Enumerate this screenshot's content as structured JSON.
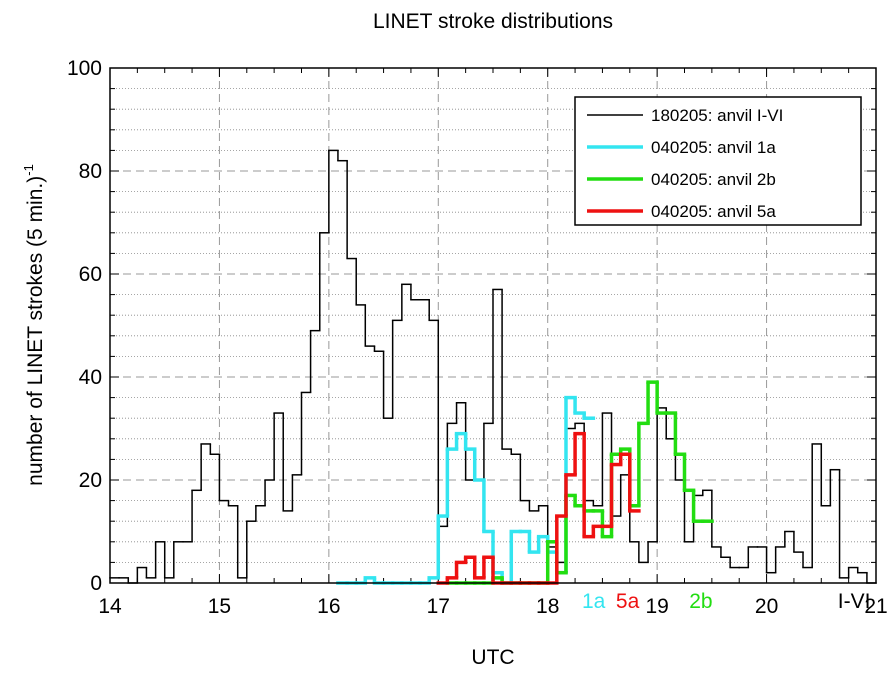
{
  "chart_data": {
    "type": "step",
    "title": "LINET stroke distributions",
    "xlabel": "UTC",
    "ylabel": "number of LINET strokes (5 min.)",
    "ylabel_superscript": "-1",
    "xlim": [
      14,
      21
    ],
    "xticks": [
      14,
      15,
      16,
      17,
      18,
      19,
      20,
      21
    ],
    "ylim": [
      0,
      100
    ],
    "yticks": [
      0,
      20,
      40,
      60,
      80,
      100
    ],
    "grid": true,
    "minor_per_major": 5,
    "legend": "upper right",
    "series": [
      {
        "name": "180205: anvil I-VI",
        "color": "#000000",
        "x": [
          14.0,
          14.083,
          14.167,
          14.25,
          14.333,
          14.417,
          14.5,
          14.583,
          14.667,
          14.75,
          14.833,
          14.917,
          15.0,
          15.083,
          15.167,
          15.25,
          15.333,
          15.417,
          15.5,
          15.583,
          15.667,
          15.75,
          15.833,
          15.917,
          16.0,
          16.083,
          16.167,
          16.25,
          16.333,
          16.417,
          16.5,
          16.583,
          16.667,
          16.75,
          16.833,
          16.917,
          17.0,
          17.083,
          17.167,
          17.25,
          17.333,
          17.417,
          17.5,
          17.583,
          17.667,
          17.75,
          17.833,
          17.917,
          18.0,
          18.083,
          18.167,
          18.25,
          18.333,
          18.417,
          18.5,
          18.583,
          18.667,
          18.75,
          18.833,
          18.917,
          19.0,
          19.083,
          19.167,
          19.25,
          19.333,
          19.417,
          19.5,
          19.583,
          19.667,
          19.75,
          19.833,
          19.917,
          20.0,
          20.083,
          20.167,
          20.25,
          20.333,
          20.417,
          20.5,
          20.583,
          20.667,
          20.75,
          20.833,
          20.917
        ],
        "values": [
          1,
          1,
          0,
          3,
          1,
          8,
          1,
          8,
          8,
          18,
          27,
          25,
          16,
          15,
          1,
          12,
          15,
          20,
          33,
          14,
          21,
          37,
          49,
          68,
          84,
          82,
          63,
          54,
          46,
          45,
          32,
          51,
          58,
          55,
          55,
          51,
          11,
          31,
          35,
          20,
          20,
          31,
          57,
          26,
          25,
          16,
          14,
          15,
          7,
          4,
          30,
          31,
          16,
          15,
          33,
          13,
          21,
          8,
          4,
          8,
          34,
          28,
          20,
          8,
          17,
          18,
          7,
          5,
          3,
          3,
          7,
          7,
          2,
          7,
          10,
          6,
          3,
          27,
          15,
          22,
          1,
          3,
          2,
          0
        ]
      },
      {
        "name": "040205: anvil 1a",
        "color": "#33e5f0",
        "x": [
          16.083,
          16.167,
          16.25,
          16.333,
          16.417,
          16.5,
          16.583,
          16.667,
          16.75,
          16.833,
          16.917,
          17.0,
          17.083,
          17.167,
          17.25,
          17.333,
          17.417,
          17.5,
          17.583,
          17.667,
          17.75,
          17.833,
          17.917,
          18.0,
          18.083,
          18.167,
          18.25,
          18.333
        ],
        "values": [
          0,
          0,
          0,
          1,
          0,
          0,
          0,
          0,
          0,
          0,
          1,
          13,
          26,
          29,
          26,
          20,
          10,
          2,
          0,
          10,
          10,
          6,
          9,
          6,
          2,
          36,
          33,
          32
        ]
      },
      {
        "name": "040205: anvil 2b",
        "color": "#22dd11",
        "x": [
          17.083,
          17.167,
          17.25,
          17.333,
          17.417,
          17.5,
          17.583,
          17.667,
          17.75,
          17.833,
          17.917,
          18.0,
          18.083,
          18.167,
          18.25,
          18.333,
          18.417,
          18.5,
          18.583,
          18.667,
          18.75,
          18.833,
          18.917,
          19.0,
          19.083,
          19.167,
          19.25,
          19.333,
          19.417
        ],
        "values": [
          0,
          0,
          0,
          0,
          0,
          1,
          0,
          0,
          0,
          0,
          0,
          8,
          2,
          17,
          15,
          14,
          14,
          9,
          25,
          26,
          15,
          31,
          39,
          33,
          33,
          25,
          18,
          12,
          12
        ]
      },
      {
        "name": "040205: anvil 5a",
        "color": "#ee1111",
        "x": [
          17.0,
          17.083,
          17.167,
          17.25,
          17.333,
          17.417,
          17.5,
          17.583,
          17.667,
          17.75,
          17.833,
          17.917,
          18.0,
          18.083,
          18.167,
          18.25,
          18.333,
          18.417,
          18.5,
          18.583,
          18.667,
          18.75
        ],
        "values": [
          0,
          1,
          4,
          5,
          1,
          5,
          0,
          0,
          0,
          0,
          0,
          0,
          0,
          13,
          21,
          29,
          9,
          11,
          11,
          23,
          25,
          14
        ]
      }
    ],
    "annotations": [
      {
        "text": "1a",
        "x": 18.42,
        "color": "#33e5f0"
      },
      {
        "text": "5a",
        "x": 18.73,
        "color": "#ee1111"
      },
      {
        "text": "2b",
        "x": 19.4,
        "color": "#22dd11"
      },
      {
        "text": "I-VI",
        "x": 20.8,
        "color": "#000000"
      }
    ]
  }
}
